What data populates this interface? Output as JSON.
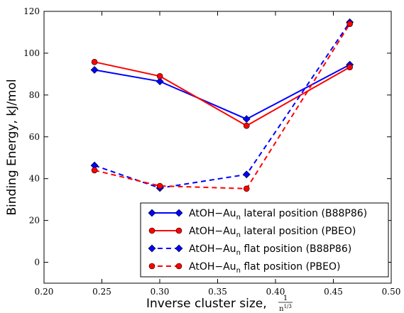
{
  "chart_data": {
    "type": "line",
    "xlabel": "Inverse cluster size,",
    "xlabel_fraction": {
      "numerator": "1",
      "denominator": "n",
      "denominator_exponent": "1/3"
    },
    "ylabel": "Binding Energy, kJ/mol",
    "xlim": [
      0.2,
      0.5
    ],
    "ylim": [
      -10,
      120
    ],
    "xticks": [
      "0.20",
      "0.25",
      "0.30",
      "0.35",
      "0.40",
      "0.45",
      "0.50"
    ],
    "yticks": [
      "0",
      "20",
      "40",
      "60",
      "80",
      "100",
      "120"
    ],
    "xtick_values": [
      0.2,
      0.25,
      0.3,
      0.35,
      0.4,
      0.45,
      0.5
    ],
    "ytick_values": [
      0,
      20,
      40,
      60,
      80,
      100,
      120
    ],
    "legend_position": "bottom-right",
    "series": [
      {
        "name_main": "AtOH−Au",
        "name_sub": "n",
        "name_rest": " lateral position (B88P86)",
        "color": "#0000ff",
        "marker": "diamond",
        "linestyle": "solid",
        "x": [
          0.2436,
          0.3001,
          0.375,
          0.4642
        ],
        "y": [
          92.0,
          86.5,
          68.5,
          94.5
        ]
      },
      {
        "name_main": "AtOH−Au",
        "name_sub": "n",
        "name_rest": " lateral position (PBEO)",
        "color": "#ff0000",
        "marker": "circle",
        "linestyle": "solid",
        "x": [
          0.2436,
          0.3001,
          0.375,
          0.4642
        ],
        "y": [
          95.8,
          89.0,
          65.3,
          93.3
        ]
      },
      {
        "name_main": "AtOH−Au",
        "name_sub": "n",
        "name_rest": " flat position (B88P86)",
        "color": "#0000ff",
        "marker": "diamond",
        "linestyle": "dashed",
        "x": [
          0.2436,
          0.3001,
          0.375,
          0.4642
        ],
        "y": [
          46.3,
          35.5,
          42.0,
          114.8
        ]
      },
      {
        "name_main": "AtOH−Au",
        "name_sub": "n",
        "name_rest": " flat position (PBEO)",
        "color": "#ff0000",
        "marker": "circle",
        "linestyle": "dashed",
        "x": [
          0.2436,
          0.3001,
          0.375,
          0.4642
        ],
        "y": [
          44.0,
          36.5,
          35.2,
          114.0
        ]
      }
    ]
  }
}
